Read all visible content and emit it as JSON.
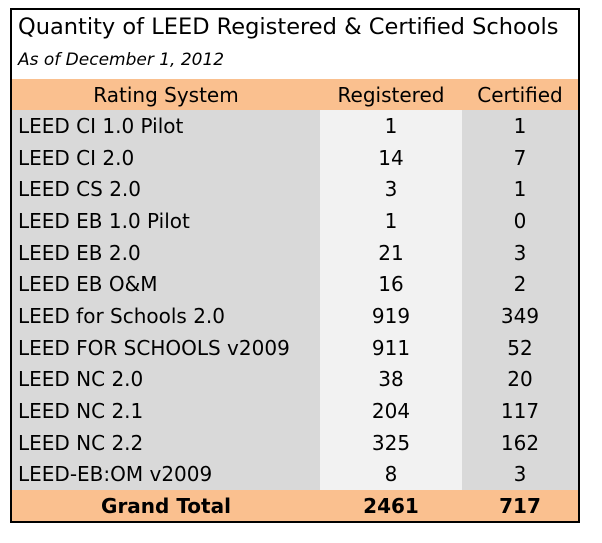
{
  "title": "Quantity of LEED Registered & Certified Schools",
  "subtitle": "As of December 1, 2012",
  "headers": {
    "rating_system": "Rating System",
    "registered": "Registered",
    "certified": "Certified"
  },
  "rows": [
    {
      "name": "LEED CI 1.0 Pilot",
      "registered": "1",
      "certified": "1"
    },
    {
      "name": "LEED CI 2.0",
      "registered": "14",
      "certified": "7"
    },
    {
      "name": "LEED CS 2.0",
      "registered": "3",
      "certified": "1"
    },
    {
      "name": "LEED EB 1.0 Pilot",
      "registered": "1",
      "certified": "0"
    },
    {
      "name": "LEED EB 2.0",
      "registered": "21",
      "certified": "3"
    },
    {
      "name": "LEED EB O&M",
      "registered": "16",
      "certified": "2"
    },
    {
      "name": "LEED for Schools 2.0",
      "registered": "919",
      "certified": "349"
    },
    {
      "name": "LEED FOR SCHOOLS v2009",
      "registered": "911",
      "certified": "52"
    },
    {
      "name": "LEED NC 2.0",
      "registered": "38",
      "certified": "20"
    },
    {
      "name": "LEED NC 2.1",
      "registered": "204",
      "certified": "117"
    },
    {
      "name": "LEED NC 2.2",
      "registered": "325",
      "certified": "162"
    },
    {
      "name": "LEED-EB:OM v2009",
      "registered": "8",
      "certified": "3"
    }
  ],
  "total": {
    "label": "Grand Total",
    "registered": "2461",
    "certified": "717"
  },
  "colors": {
    "header_bg": "#fac08f",
    "row_bg": "#d9d9d9",
    "registered_col_bg": "#f2f2f2"
  }
}
